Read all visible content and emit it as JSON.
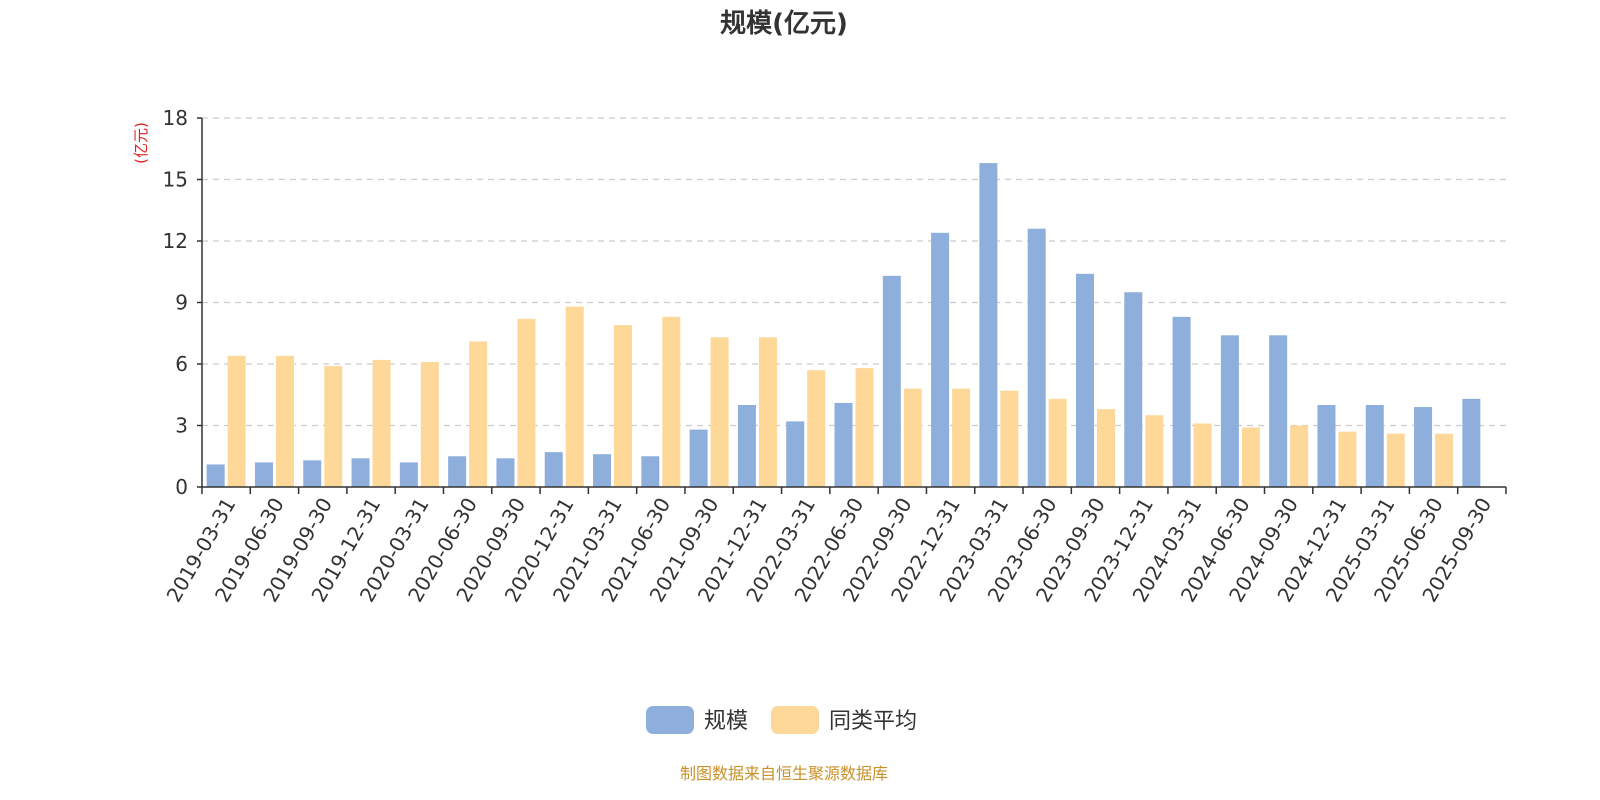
{
  "colors": {
    "series_1": "#8eaedb",
    "series_2": "#fdd899",
    "unit_label": "#e02020",
    "source": "#c8902a",
    "text": "#333333",
    "grid": "#cccccc",
    "axis": "#333333"
  },
  "source_text": "制图数据来自恒生聚源数据库",
  "chart_data": {
    "type": "bar",
    "title": "规模(亿元)",
    "ylabel": "(亿元)",
    "xlabel": "",
    "ylim": [
      0,
      18
    ],
    "yticks": [
      0,
      3,
      6,
      9,
      12,
      15,
      18
    ],
    "grid": true,
    "legend_position": "bottom",
    "categories": [
      "2019-03-31",
      "2019-06-30",
      "2019-09-30",
      "2019-12-31",
      "2020-03-31",
      "2020-06-30",
      "2020-09-30",
      "2020-12-31",
      "2021-03-31",
      "2021-06-30",
      "2021-09-30",
      "2021-12-31",
      "2022-03-31",
      "2022-06-30",
      "2022-09-30",
      "2022-12-31",
      "2023-03-31",
      "2023-06-30",
      "2023-09-30",
      "2023-12-31",
      "2024-03-31",
      "2024-06-30",
      "2024-09-30",
      "2024-12-31",
      "2025-03-31",
      "2025-06-30",
      "2025-09-30"
    ],
    "series": [
      {
        "name": "规模",
        "values": [
          1.1,
          1.2,
          1.3,
          1.4,
          1.2,
          1.5,
          1.4,
          1.7,
          1.6,
          1.5,
          2.8,
          4.0,
          3.2,
          4.1,
          10.3,
          12.4,
          15.8,
          12.6,
          10.4,
          9.5,
          8.3,
          7.4,
          7.4,
          4.0,
          4.0,
          3.9,
          4.3
        ]
      },
      {
        "name": "同类平均",
        "values": [
          6.4,
          6.4,
          5.9,
          6.2,
          6.1,
          7.1,
          8.2,
          8.8,
          7.9,
          8.3,
          7.3,
          7.3,
          5.7,
          5.8,
          4.8,
          4.8,
          4.7,
          4.3,
          3.8,
          3.5,
          3.1,
          2.9,
          3.0,
          2.7,
          2.6,
          2.6,
          null
        ]
      }
    ]
  }
}
